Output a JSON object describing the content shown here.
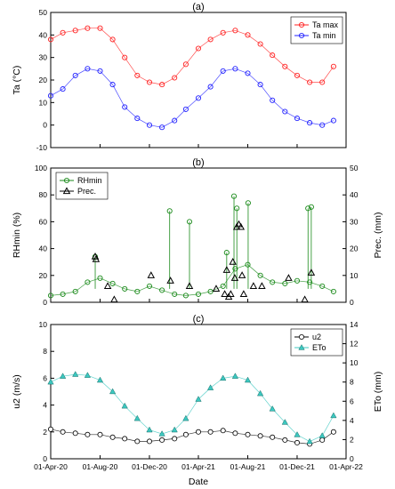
{
  "chart_data": [
    {
      "panel": "(a)",
      "type": "scatter",
      "title": "(a)",
      "xlabel": "",
      "ylabel": "Ta (°C)",
      "ylim": [
        -10,
        50
      ],
      "yticks": [
        -10,
        0,
        10,
        20,
        30,
        40,
        50
      ],
      "xlim": [
        "2020-04-01",
        "2022-04-01"
      ],
      "legend": "top-right",
      "series": [
        {
          "name": "Ta max",
          "color": "#ff2020",
          "marker": "circle",
          "connected": true,
          "x": [
            "2020-04-01",
            "2020-05-01",
            "2020-06-01",
            "2020-07-01",
            "2020-08-01",
            "2020-09-01",
            "2020-10-01",
            "2020-11-01",
            "2020-12-01",
            "2021-01-01",
            "2021-02-01",
            "2021-03-01",
            "2021-04-01",
            "2021-05-01",
            "2021-06-01",
            "2021-07-01",
            "2021-08-01",
            "2021-09-01",
            "2021-10-01",
            "2021-11-01",
            "2021-12-01",
            "2022-01-01",
            "2022-02-01",
            "2022-03-01"
          ],
          "y": [
            38,
            41,
            42,
            43,
            43,
            38,
            30,
            22,
            19,
            18,
            21,
            27,
            34,
            38,
            41,
            42,
            40,
            36,
            31,
            26,
            22,
            19,
            19,
            26
          ]
        },
        {
          "name": "Ta min",
          "color": "#2020ff",
          "marker": "circle",
          "connected": true,
          "x": [
            "2020-04-01",
            "2020-05-01",
            "2020-06-01",
            "2020-07-01",
            "2020-08-01",
            "2020-09-01",
            "2020-10-01",
            "2020-11-01",
            "2020-12-01",
            "2021-01-01",
            "2021-02-01",
            "2021-03-01",
            "2021-04-01",
            "2021-05-01",
            "2021-06-01",
            "2021-07-01",
            "2021-08-01",
            "2021-09-01",
            "2021-10-01",
            "2021-11-01",
            "2021-12-01",
            "2022-01-01",
            "2022-02-01",
            "2022-03-01"
          ],
          "y": [
            13,
            16,
            22,
            25,
            24,
            18,
            8,
            3,
            0,
            -1,
            2,
            7,
            12,
            17,
            24,
            25,
            23,
            18,
            11,
            6,
            3,
            1,
            0,
            2
          ]
        }
      ]
    },
    {
      "panel": "(b)",
      "type": "scatter",
      "title": "(b)",
      "xlabel": "",
      "ylabel": "RHmin (%)",
      "ylim": [
        0,
        100
      ],
      "yticks": [
        0,
        20,
        40,
        60,
        80,
        100
      ],
      "y2label": "Prec. (mm)",
      "y2lim": [
        0,
        50
      ],
      "y2ticks": [
        0,
        10,
        20,
        30,
        40,
        50
      ],
      "xlim": [
        "2020-04-01",
        "2022-04-01"
      ],
      "legend": "top-left",
      "series": [
        {
          "name": "RHmin",
          "color": "#1a8a1a",
          "marker": "circle",
          "connected": true,
          "axis": "left",
          "x": [
            "2020-04-01",
            "2020-05-01",
            "2020-06-01",
            "2020-07-01",
            "2020-08-01",
            "2020-09-01",
            "2020-10-01",
            "2020-11-01",
            "2020-12-01",
            "2021-01-01",
            "2021-02-01",
            "2021-03-01",
            "2021-04-01",
            "2021-05-01",
            "2021-06-01",
            "2021-07-01",
            "2021-08-01",
            "2021-09-01",
            "2021-10-01",
            "2021-11-01",
            "2021-12-01",
            "2022-01-01",
            "2022-02-01",
            "2022-03-01"
          ],
          "y": [
            5,
            6,
            8,
            15,
            18,
            14,
            10,
            8,
            12,
            9,
            6,
            5,
            6,
            8,
            12,
            25,
            28,
            20,
            15,
            14,
            16,
            15,
            12,
            8
          ],
          "spikes": [
            {
              "x": "2020-07-20",
              "y": 34
            },
            {
              "x": "2021-01-20",
              "y": 68
            },
            {
              "x": "2021-03-10",
              "y": 60
            },
            {
              "x": "2021-06-10",
              "y": 37
            },
            {
              "x": "2021-06-28",
              "y": 79
            },
            {
              "x": "2021-07-05",
              "y": 70
            },
            {
              "x": "2021-08-02",
              "y": 74
            },
            {
              "x": "2021-12-28",
              "y": 70
            },
            {
              "x": "2022-01-05",
              "y": 71
            }
          ]
        },
        {
          "name": "Prec.",
          "color": "#000000",
          "marker": "triangle-open",
          "connected": false,
          "axis": "right",
          "x": [
            "2020-07-20",
            "2020-07-22",
            "2020-08-20",
            "2020-09-05",
            "2020-12-05",
            "2021-01-22",
            "2021-03-10",
            "2021-05-15",
            "2021-06-05",
            "2021-06-10",
            "2021-06-15",
            "2021-06-20",
            "2021-06-25",
            "2021-06-30",
            "2021-07-05",
            "2021-07-10",
            "2021-07-15",
            "2021-07-18",
            "2021-07-22",
            "2021-08-15",
            "2021-09-05",
            "2021-11-10",
            "2021-12-20",
            "2022-01-05"
          ],
          "y": [
            17,
            16,
            6,
            1,
            10,
            8,
            6,
            5,
            3,
            12,
            2,
            3,
            15,
            9,
            28,
            29,
            28,
            10,
            3,
            6,
            6,
            9,
            1,
            11
          ]
        }
      ]
    },
    {
      "panel": "(c)",
      "type": "scatter",
      "title": "(c)",
      "xlabel": "Date",
      "ylabel": "u2 (m/s)",
      "ylim": [
        0,
        10
      ],
      "yticks": [
        0,
        2,
        4,
        6,
        8,
        10
      ],
      "y2label": "ETo (mm)",
      "y2lim": [
        0,
        14
      ],
      "y2ticks": [
        0,
        2,
        4,
        6,
        8,
        10,
        12,
        14
      ],
      "xlim": [
        "2020-04-01",
        "2022-04-01"
      ],
      "xticks": [
        "01-Apr-20",
        "01-Aug-20",
        "01-Dec-20",
        "01-Apr-21",
        "01-Aug-21",
        "01-Dec-21",
        "01-Apr-22"
      ],
      "legend": "top-right",
      "series": [
        {
          "name": "u2",
          "color": "#000000",
          "marker": "circle-open",
          "connected": true,
          "axis": "left",
          "x": [
            "2020-04-01",
            "2020-05-01",
            "2020-06-01",
            "2020-07-01",
            "2020-08-01",
            "2020-09-01",
            "2020-10-01",
            "2020-11-01",
            "2020-12-01",
            "2021-01-01",
            "2021-02-01",
            "2021-03-01",
            "2021-04-01",
            "2021-05-01",
            "2021-06-01",
            "2021-07-01",
            "2021-08-01",
            "2021-09-01",
            "2021-10-01",
            "2021-11-01",
            "2021-12-01",
            "2022-01-01",
            "2022-02-01",
            "2022-03-01"
          ],
          "y": [
            2.2,
            2.0,
            1.9,
            1.8,
            1.8,
            1.6,
            1.5,
            1.3,
            1.3,
            1.4,
            1.5,
            1.8,
            2.0,
            2.0,
            2.1,
            1.9,
            1.8,
            1.7,
            1.6,
            1.4,
            1.2,
            1.1,
            1.4,
            2.0
          ]
        },
        {
          "name": "ETo",
          "color": "#3cc8c0",
          "marker": "triangle",
          "connected": true,
          "axis": "right",
          "x": [
            "2020-04-01",
            "2020-05-01",
            "2020-06-01",
            "2020-07-01",
            "2020-08-01",
            "2020-09-01",
            "2020-10-01",
            "2020-11-01",
            "2020-12-01",
            "2021-01-01",
            "2021-02-01",
            "2021-03-01",
            "2021-04-01",
            "2021-05-01",
            "2021-06-01",
            "2021-07-01",
            "2021-08-01",
            "2021-09-01",
            "2021-10-01",
            "2021-11-01",
            "2021-12-01",
            "2022-01-01",
            "2022-02-01",
            "2022-03-01"
          ],
          "y": [
            8.0,
            8.6,
            8.8,
            8.7,
            8.2,
            7.0,
            5.5,
            4.2,
            3.0,
            2.6,
            3.0,
            4.2,
            6.2,
            7.4,
            8.4,
            8.6,
            8.2,
            6.8,
            5.2,
            3.8,
            2.5,
            1.8,
            2.4,
            4.5
          ]
        }
      ]
    }
  ]
}
